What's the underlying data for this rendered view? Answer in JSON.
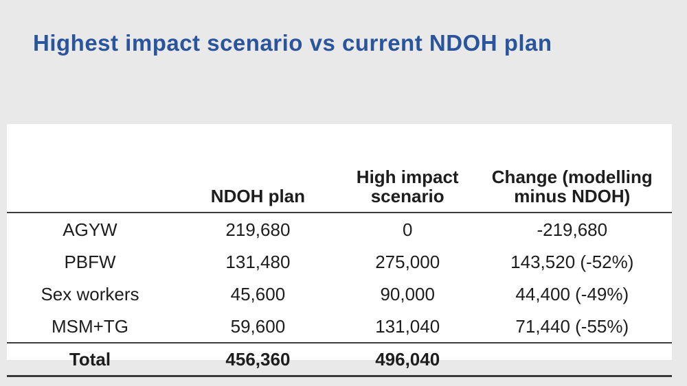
{
  "slide": {
    "title": "Highest impact scenario vs current NDOH plan"
  },
  "table": {
    "columns": [
      "",
      "NDOH plan",
      "High impact\nscenario",
      "Change (modelling\nminus NDOH)"
    ],
    "rows": [
      {
        "label": "AGYW",
        "ndoh_plan": "219,680",
        "high_impact": "0",
        "change": "-219,680"
      },
      {
        "label": "PBFW",
        "ndoh_plan": "131,480",
        "high_impact": "275,000",
        "change": "143,520 (-52%)"
      },
      {
        "label": "Sex workers",
        "ndoh_plan": "45,600",
        "high_impact": "90,000",
        "change": "44,400 (-49%)"
      },
      {
        "label": "MSM+TG",
        "ndoh_plan": "59,600",
        "high_impact": "131,040",
        "change": "71,440 (-55%)"
      }
    ],
    "total": {
      "label": "Total",
      "ndoh_plan": "456,360",
      "high_impact": "496,040",
      "change": ""
    }
  },
  "colors": {
    "background": "#e9e9e9",
    "panel": "#ffffff",
    "title_text": "#2a549b",
    "body_text": "#1d1d1d",
    "rule": "#3c3c3c"
  }
}
